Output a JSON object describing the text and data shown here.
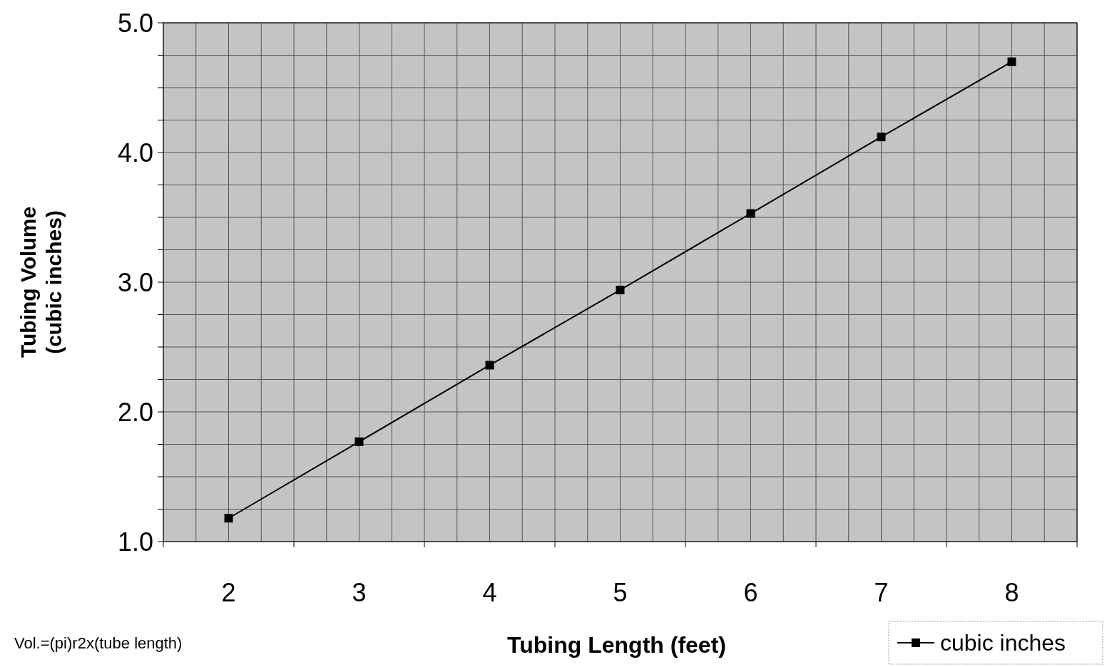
{
  "chart_data": {
    "type": "line",
    "xlabel": "Tubing Length (feet)",
    "ylabel": "Tubing Volume\n(cubic inches)",
    "categories": [
      "2",
      "3",
      "4",
      "5",
      "6",
      "7",
      "8"
    ],
    "series": [
      {
        "name": "cubic inches",
        "color": "#000000",
        "values": [
          1.18,
          1.77,
          2.36,
          2.94,
          3.53,
          4.12,
          4.7
        ]
      }
    ],
    "ylim": [
      1,
      5
    ],
    "yticks": [
      {
        "value": 1,
        "label": "1.0"
      },
      {
        "value": 1.25,
        "label": null
      },
      {
        "value": 1.5,
        "label": null
      },
      {
        "value": 1.75,
        "label": null
      },
      {
        "value": 2,
        "label": "2.0"
      },
      {
        "value": 2.25,
        "label": null
      },
      {
        "value": 2.5,
        "label": null
      },
      {
        "value": 2.75,
        "label": null
      },
      {
        "value": 3,
        "label": "3.0"
      },
      {
        "value": 3.25,
        "label": null
      },
      {
        "value": 3.5,
        "label": null
      },
      {
        "value": 3.75,
        "label": null
      },
      {
        "value": 4,
        "label": "4.0"
      },
      {
        "value": 4.25,
        "label": null
      },
      {
        "value": 4.5,
        "label": null
      },
      {
        "value": 4.75,
        "label": null
      },
      {
        "value": 5,
        "label": "5.0"
      }
    ],
    "grid": true,
    "legend": "bottom right",
    "marker": "square",
    "line_style": "solid",
    "annotations": [
      "Vol.=(pi)r2x(tube length)"
    ]
  }
}
